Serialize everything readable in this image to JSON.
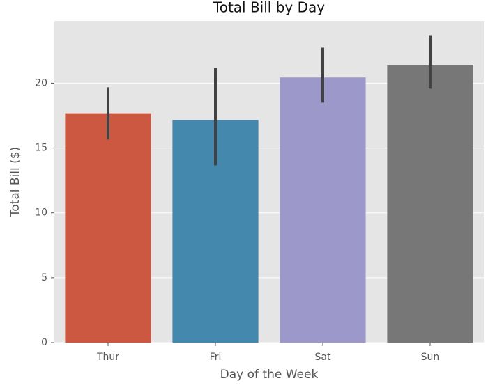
{
  "chart_data": {
    "type": "bar",
    "title": "Total Bill by Day",
    "xlabel": "Day of the Week",
    "ylabel": "Total Bill ($)",
    "categories": [
      "Thur",
      "Fri",
      "Sat",
      "Sun"
    ],
    "values": [
      17.68,
      17.15,
      20.44,
      21.41
    ],
    "ci_low": [
      15.66,
      13.67,
      18.5,
      19.57
    ],
    "ci_high": [
      19.68,
      21.18,
      22.73,
      23.7
    ],
    "colors": [
      "#cd5842",
      "#4588ad",
      "#9d98ca",
      "#777777"
    ],
    "ylim": [
      0,
      24.8
    ],
    "yticks": [
      0,
      5,
      10,
      15,
      20
    ],
    "grid": true
  }
}
